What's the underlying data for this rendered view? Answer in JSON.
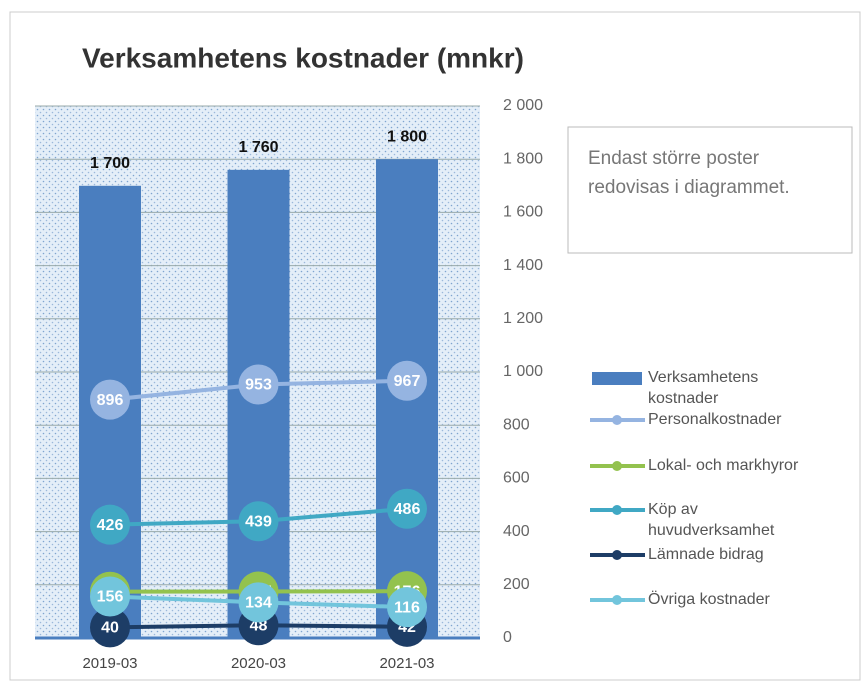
{
  "chart_data": {
    "type": "bar",
    "title": "Verksamhetens kostnader (mnkr)",
    "annotation": "Endast större poster redovisas i diagrammet.",
    "categories": [
      "2019-03",
      "2020-03",
      "2021-03"
    ],
    "series": [
      {
        "name": "Verksamhetens kostnader",
        "type": "bar",
        "color": "#4a7ebf",
        "values": [
          1700,
          1760,
          1800
        ],
        "value_labels": [
          "1 700",
          "1 760",
          "1 800"
        ]
      },
      {
        "name": "Personalkostnader",
        "type": "line",
        "color": "#95b4e1",
        "values": [
          896,
          953,
          967
        ]
      },
      {
        "name": "Lokal- och markhyror",
        "type": "line",
        "color": "#93c24e",
        "values": [
          174,
          175,
          176
        ]
      },
      {
        "name": "Köp av huvudverksamhet",
        "type": "line",
        "color": "#40a8c4",
        "values": [
          426,
          439,
          486
        ]
      },
      {
        "name": "Lämnade bidrag",
        "type": "line",
        "color": "#1d3d66",
        "values": [
          40,
          48,
          42
        ]
      },
      {
        "name": "Övriga kostnader",
        "type": "line",
        "color": "#72c5dc",
        "values": [
          156,
          134,
          116
        ]
      }
    ],
    "ylim": [
      0,
      2000
    ],
    "yticks": [
      0,
      200,
      400,
      600,
      800,
      {
        "value": 1000,
        "label": "1 000"
      },
      {
        "value": 1200,
        "label": "1 200"
      },
      {
        "value": 1400,
        "label": "1 400"
      },
      {
        "value": 1600,
        "label": "1 600"
      },
      {
        "value": 1800,
        "label": "1 800"
      },
      {
        "value": 2000,
        "label": "2 000"
      }
    ],
    "grid": true,
    "legend": "right"
  }
}
